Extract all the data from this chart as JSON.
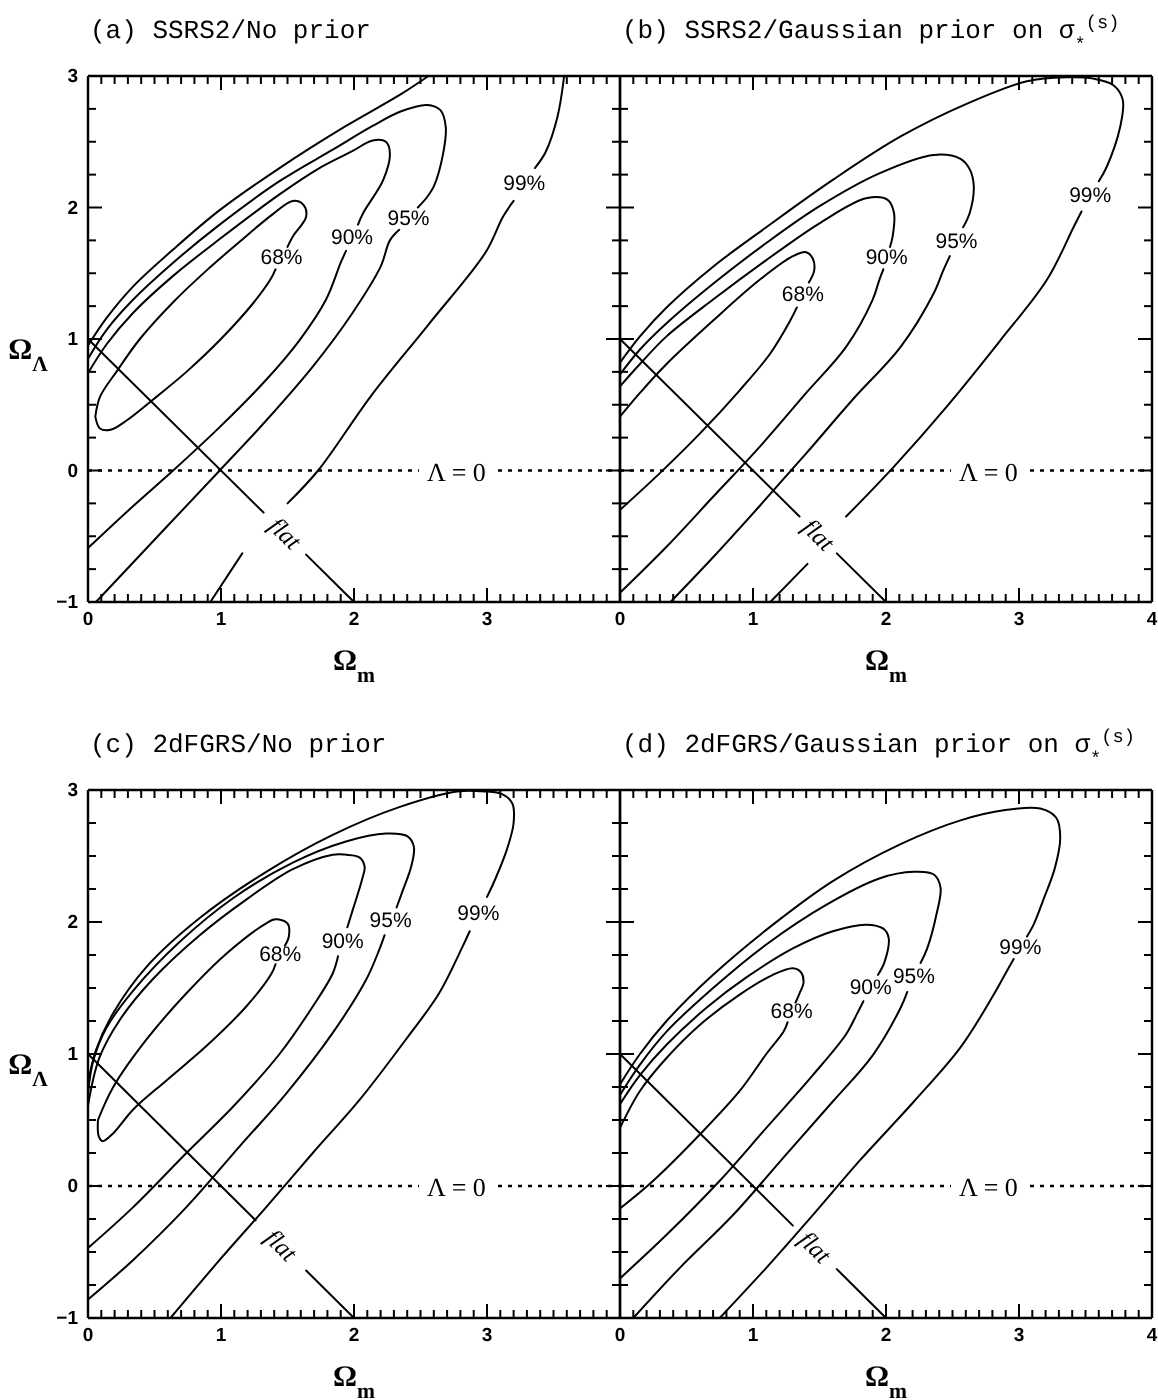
{
  "chart_data": [
    {
      "type": "line",
      "title": "(a) SSRS2/No prior",
      "xlabel": "Ω$_{m}$",
      "ylabel": "Ω$_{Λ}$",
      "xlim": [
        0,
        4
      ],
      "ylim": [
        -1,
        3
      ],
      "xticks": [
        0,
        {
          "value": 0.1,
          "label": null
        },
        {
          "value": 0.2,
          "label": null
        },
        {
          "value": 0.3,
          "label": null
        },
        {
          "value": 0.4,
          "label": null
        },
        {
          "value": 0.5,
          "label": null
        },
        {
          "value": 0.6,
          "label": null
        },
        {
          "value": 0.7,
          "label": null
        },
        {
          "value": 0.8,
          "label": null
        },
        {
          "value": 0.9,
          "label": null
        },
        1,
        {
          "value": 1.1,
          "label": null
        },
        {
          "value": 1.2,
          "label": null
        },
        {
          "value": 1.3,
          "label": null
        },
        {
          "value": 1.4,
          "label": null
        },
        {
          "value": 1.5,
          "label": null
        },
        {
          "value": 1.6,
          "label": null
        },
        {
          "value": 1.7,
          "label": null
        },
        {
          "value": 1.8,
          "label": null
        },
        {
          "value": 1.9,
          "label": null
        },
        2,
        {
          "value": 2.1,
          "label": null
        },
        {
          "value": 2.2,
          "label": null
        },
        {
          "value": 2.3,
          "label": null
        },
        {
          "value": 2.4,
          "label": null
        },
        {
          "value": 2.5,
          "label": null
        },
        {
          "value": 2.6,
          "label": null
        },
        {
          "value": 2.7,
          "label": null
        },
        {
          "value": 2.8,
          "label": null
        },
        {
          "value": 2.9,
          "label": null
        },
        3,
        {
          "value": 3.1,
          "label": null
        },
        {
          "value": 3.2,
          "label": null
        },
        {
          "value": 3.3,
          "label": null
        },
        {
          "value": 3.4,
          "label": null
        },
        {
          "value": 3.5,
          "label": null
        },
        {
          "value": 3.6,
          "label": null
        },
        {
          "value": 3.7,
          "label": null
        },
        {
          "value": 3.8,
          "label": null
        },
        {
          "value": 3.9,
          "label": null
        },
        {
          "value": 4,
          "label": null
        }
      ],
      "yticks": [
        -1,
        {
          "value": -0.75,
          "label": null
        },
        {
          "value": -0.5,
          "label": null
        },
        {
          "value": -0.25,
          "label": null
        },
        0,
        {
          "value": 0.25,
          "label": null
        },
        {
          "value": 0.5,
          "label": null
        },
        {
          "value": 0.75,
          "label": null
        },
        1,
        {
          "value": 1.25,
          "label": null
        },
        {
          "value": 1.5,
          "label": null
        },
        {
          "value": 1.75,
          "label": null
        },
        2,
        {
          "value": 2.25,
          "label": null
        },
        {
          "value": 2.5,
          "label": null
        },
        {
          "value": 2.75,
          "label": null
        },
        3
      ],
      "ref_lines": [
        {
          "axis": "y",
          "value": 0,
          "label": "Λ = 0",
          "line_style": "dotted"
        }
      ],
      "series": [
        {
          "name": "68%",
          "color": "#000000",
          "x": [
            0.055,
            0.09,
            0.22,
            0.39,
            0.64,
            0.89,
            1.14,
            1.39,
            1.54,
            1.62,
            1.64,
            1.54,
            1.5,
            1.46,
            1.41,
            1.37,
            1.24,
            0.99,
            0.74,
            0.49,
            0.29,
            0.17,
            0.09,
            0.055
          ],
          "values": [
            0.41,
            0.56,
            0.76,
            1.0,
            1.28,
            1.52,
            1.74,
            1.95,
            2.05,
            2.02,
            1.93,
            1.78,
            1.7,
            null,
            1.53,
            1.45,
            1.27,
            0.99,
            0.75,
            0.54,
            0.38,
            0.31,
            0.32,
            0.41
          ]
        },
        {
          "name": "90%",
          "color": "#000000",
          "x": [
            0,
            0.34,
            0.64,
            0.99,
            1.34,
            1.59,
            1.79,
            1.9,
            1.94,
            1.99,
            2.03,
            2.07,
            2.22,
            2.27,
            2.24,
            2.14,
            1.99,
            1.74,
            1.44,
            0.99,
            0.64,
            0.34,
            0.14,
            0
          ],
          "values": [
            -0.59,
            -0.27,
            0.0,
            0.33,
            0.69,
            0.99,
            1.3,
            1.58,
            1.67,
            null,
            1.87,
            1.96,
            2.21,
            2.41,
            2.5,
            2.51,
            2.43,
            2.3,
            2.1,
            1.76,
            1.48,
            1.2,
            0.96,
            0.74
          ]
        },
        {
          "name": "95%",
          "color": "#000000",
          "x": [
            0.06,
            0.59,
            0.99,
            1.34,
            1.69,
            1.99,
            2.2,
            2.27,
            2.34,
            2.41,
            2.48,
            2.55,
            2.6,
            2.67,
            2.69,
            2.65,
            2.55,
            2.35,
            2.14,
            1.84,
            1.44,
            0.99,
            0.64,
            0.34,
            0.14,
            0
          ],
          "values": [
            -1,
            -0.43,
            0.0,
            0.38,
            0.79,
            1.2,
            1.55,
            1.75,
            1.83,
            null,
            2.0,
            2.08,
            2.16,
            2.41,
            2.61,
            2.74,
            2.78,
            2.73,
            2.62,
            2.44,
            2.2,
            1.87,
            1.58,
            1.3,
            1.07,
            0.85
          ]
        },
        {
          "name": "99%",
          "color": "#000000",
          "x": [
            3.58,
            3.53,
            3.44,
            3.36,
            3.28,
            3.2,
            3.12,
            2.99,
            2.56,
            2.13,
            1.73,
            1.5,
            1.33,
            1.16,
            0.92,
            1.75,
            2.56,
            2.35,
            1.94,
            1.44,
            0.99,
            0.64,
            0.34,
            0.14,
            0
          ],
          "values": [
            3.0,
            2.69,
            2.42,
            2.3,
            null,
            2.05,
            1.93,
            1.66,
            1.11,
            0.57,
            0.0,
            -0.25,
            null,
            -0.63,
            -1,
            null,
            3.0,
            2.86,
            2.62,
            2.3,
            1.98,
            1.68,
            1.4,
            1.16,
            0.95
          ]
        },
        {
          "name": "flat",
          "color": "#000000",
          "x": [
            0,
            1.32,
            1.48,
            1.64,
            2
          ],
          "values": [
            1,
            -0.32,
            null,
            -0.64,
            -1
          ]
        }
      ]
    },
    {
      "type": "line",
      "title": "(b) SSRS2/Gaussian prior on σ$_{*}$$^{(s)}$",
      "xlabel": "Ω$_{m}$",
      "xlim": [
        0,
        4
      ],
      "ylim": [
        -1,
        3
      ],
      "tick_labels": "x",
      "xticks": [
        0,
        {
          "value": 0.1,
          "label": null
        },
        {
          "value": 0.2,
          "label": null
        },
        {
          "value": 0.3,
          "label": null
        },
        {
          "value": 0.4,
          "label": null
        },
        {
          "value": 0.5,
          "label": null
        },
        {
          "value": 0.6,
          "label": null
        },
        {
          "value": 0.7,
          "label": null
        },
        {
          "value": 0.8,
          "label": null
        },
        {
          "value": 0.9,
          "label": null
        },
        1,
        {
          "value": 1.1,
          "label": null
        },
        {
          "value": 1.2,
          "label": null
        },
        {
          "value": 1.3,
          "label": null
        },
        {
          "value": 1.4,
          "label": null
        },
        {
          "value": 1.5,
          "label": null
        },
        {
          "value": 1.6,
          "label": null
        },
        {
          "value": 1.7,
          "label": null
        },
        {
          "value": 1.8,
          "label": null
        },
        {
          "value": 1.9,
          "label": null
        },
        2,
        {
          "value": 2.1,
          "label": null
        },
        {
          "value": 2.2,
          "label": null
        },
        {
          "value": 2.3,
          "label": null
        },
        {
          "value": 2.4,
          "label": null
        },
        {
          "value": 2.5,
          "label": null
        },
        {
          "value": 2.6,
          "label": null
        },
        {
          "value": 2.7,
          "label": null
        },
        {
          "value": 2.8,
          "label": null
        },
        {
          "value": 2.9,
          "label": null
        },
        3,
        {
          "value": 3.1,
          "label": null
        },
        {
          "value": 3.2,
          "label": null
        },
        {
          "value": 3.3,
          "label": null
        },
        {
          "value": 3.4,
          "label": null
        },
        {
          "value": 3.5,
          "label": null
        },
        {
          "value": 3.6,
          "label": null
        },
        {
          "value": 3.7,
          "label": null
        },
        {
          "value": 3.8,
          "label": null
        },
        {
          "value": 3.9,
          "label": null
        },
        4
      ],
      "yticks": [
        -1,
        {
          "value": -0.75,
          "label": null
        },
        {
          "value": -0.5,
          "label": null
        },
        {
          "value": -0.25,
          "label": null
        },
        0,
        {
          "value": 0.25,
          "label": null
        },
        {
          "value": 0.5,
          "label": null
        },
        {
          "value": 0.75,
          "label": null
        },
        1,
        {
          "value": 1.25,
          "label": null
        },
        {
          "value": 1.5,
          "label": null
        },
        {
          "value": 1.75,
          "label": null
        },
        2,
        {
          "value": 2.25,
          "label": null
        },
        {
          "value": 2.5,
          "label": null
        },
        {
          "value": 2.75,
          "label": null
        },
        3
      ],
      "ref_lines": [
        {
          "axis": "y",
          "value": 0,
          "label": "Λ = 0",
          "line_style": "dotted"
        }
      ],
      "series": [
        {
          "name": "68%",
          "color": "#000000",
          "x": [
            0,
            0.3,
            0.6,
            0.9,
            1.13,
            1.28,
            1.33,
            1.37,
            1.42,
            1.46,
            1.45,
            1.4,
            1.3,
            1.05,
            0.7,
            0.35,
            0.15,
            0
          ],
          "values": [
            -0.3,
            -0.02,
            0.28,
            0.61,
            0.89,
            1.14,
            1.24,
            null,
            1.43,
            1.52,
            1.61,
            1.66,
            1.63,
            1.45,
            1.14,
            0.81,
            0.59,
            0.41
          ]
        },
        {
          "name": "90%",
          "color": "#000000",
          "x": [
            0,
            0.35,
            0.7,
            1.05,
            1.4,
            1.7,
            1.9,
            1.95,
            1.98,
            2.0,
            2.03,
            2.05,
            2.06,
            2.01,
            1.85,
            1.5,
            1.1,
            0.7,
            0.35,
            0.15,
            0
          ],
          "values": [
            -0.93,
            -0.58,
            -0.2,
            0.18,
            0.59,
            0.94,
            1.3,
            1.45,
            1.53,
            null,
            1.7,
            1.78,
            1.96,
            2.06,
            2.07,
            1.88,
            1.6,
            1.3,
            1.02,
            0.81,
            0.64
          ]
        },
        {
          "name": "95%",
          "color": "#000000",
          "x": [
            0.38,
            0.7,
            1.05,
            1.4,
            1.75,
            2.11,
            2.36,
            2.43,
            2.48,
            2.53,
            2.58,
            2.63,
            2.66,
            2.63,
            2.56,
            2.36,
            1.95,
            1.5,
            1.1,
            0.7,
            0.35,
            0.15,
            0
          ],
          "values": [
            -1,
            -0.66,
            -0.27,
            0.13,
            0.54,
            0.94,
            1.35,
            1.52,
            1.63,
            null,
            1.85,
            1.96,
            2.16,
            2.29,
            2.37,
            2.4,
            2.26,
            2.01,
            1.73,
            1.42,
            1.12,
            0.92,
            0.73
          ]
        },
        {
          "name": "99%",
          "color": "#000000",
          "x": [
            0,
            0.15,
            0.35,
            0.7,
            1.1,
            1.6,
            2.11,
            2.61,
            3.06,
            3.36,
            3.56,
            3.71,
            3.78,
            3.76,
            3.66,
            3.6,
            3.53,
            3.47,
            3.41,
            3.21,
            2.86,
            2.46,
            2.06,
            1.7,
            1.55,
            1.41,
            1.13
          ],
          "values": [
            0.82,
            1.02,
            1.24,
            1.55,
            1.85,
            2.21,
            2.54,
            2.79,
            2.96,
            2.99,
            2.98,
            2.93,
            2.82,
            2.61,
            2.31,
            2.2,
            null,
            1.97,
            1.85,
            1.45,
            0.99,
            0.49,
            0.03,
            -0.35,
            null,
            -0.71,
            -1
          ]
        },
        {
          "name": "flat",
          "color": "#000000",
          "x": [
            0,
            1.35,
            1.49,
            1.63,
            2
          ],
          "values": [
            1,
            -0.35,
            null,
            -0.63,
            -1
          ]
        }
      ]
    },
    {
      "type": "line",
      "title": "(c) 2dFGRS/No prior",
      "xlabel": "Ω$_{m}$",
      "ylabel": "Ω$_{Λ}$",
      "xlim": [
        0,
        4
      ],
      "ylim": [
        -1,
        3
      ],
      "xticks": [
        0,
        {
          "value": 0.1,
          "label": null
        },
        {
          "value": 0.2,
          "label": null
        },
        {
          "value": 0.3,
          "label": null
        },
        {
          "value": 0.4,
          "label": null
        },
        {
          "value": 0.5,
          "label": null
        },
        {
          "value": 0.6,
          "label": null
        },
        {
          "value": 0.7,
          "label": null
        },
        {
          "value": 0.8,
          "label": null
        },
        {
          "value": 0.9,
          "label": null
        },
        1,
        {
          "value": 1.1,
          "label": null
        },
        {
          "value": 1.2,
          "label": null
        },
        {
          "value": 1.3,
          "label": null
        },
        {
          "value": 1.4,
          "label": null
        },
        {
          "value": 1.5,
          "label": null
        },
        {
          "value": 1.6,
          "label": null
        },
        {
          "value": 1.7,
          "label": null
        },
        {
          "value": 1.8,
          "label": null
        },
        {
          "value": 1.9,
          "label": null
        },
        2,
        {
          "value": 2.1,
          "label": null
        },
        {
          "value": 2.2,
          "label": null
        },
        {
          "value": 2.3,
          "label": null
        },
        {
          "value": 2.4,
          "label": null
        },
        {
          "value": 2.5,
          "label": null
        },
        {
          "value": 2.6,
          "label": null
        },
        {
          "value": 2.7,
          "label": null
        },
        {
          "value": 2.8,
          "label": null
        },
        {
          "value": 2.9,
          "label": null
        },
        3,
        {
          "value": 3.1,
          "label": null
        },
        {
          "value": 3.2,
          "label": null
        },
        {
          "value": 3.3,
          "label": null
        },
        {
          "value": 3.4,
          "label": null
        },
        {
          "value": 3.5,
          "label": null
        },
        {
          "value": 3.6,
          "label": null
        },
        {
          "value": 3.7,
          "label": null
        },
        {
          "value": 3.8,
          "label": null
        },
        {
          "value": 3.9,
          "label": null
        },
        {
          "value": 4,
          "label": null
        }
      ],
      "yticks": [
        -1,
        {
          "value": -0.75,
          "label": null
        },
        {
          "value": -0.5,
          "label": null
        },
        {
          "value": -0.25,
          "label": null
        },
        0,
        {
          "value": 0.25,
          "label": null
        },
        {
          "value": 0.5,
          "label": null
        },
        {
          "value": 0.75,
          "label": null
        },
        1,
        {
          "value": 1.25,
          "label": null
        },
        {
          "value": 1.5,
          "label": null
        },
        {
          "value": 1.75,
          "label": null
        },
        2,
        {
          "value": 2.25,
          "label": null
        },
        {
          "value": 2.5,
          "label": null
        },
        {
          "value": 2.75,
          "label": null
        },
        3
      ],
      "ref_lines": [
        {
          "axis": "y",
          "value": 0,
          "label": "Λ = 0",
          "line_style": "dotted"
        }
      ],
      "series": [
        {
          "name": "68%",
          "color": "#000000",
          "x": [
            0.075,
            0.19,
            0.44,
            0.74,
            1.04,
            1.34,
            1.41,
            1.5,
            1.51,
            1.48,
            1.45,
            1.41,
            1.38,
            1.19,
            0.89,
            0.59,
            0.34,
            0.19,
            0.11,
            0.08,
            0.075
          ],
          "values": [
            0.5,
            0.75,
            1.11,
            1.46,
            1.76,
            1.99,
            2.02,
            1.99,
            1.89,
            1.82,
            null,
            1.68,
            1.61,
            1.36,
            1.06,
            0.8,
            0.58,
            0.4,
            0.34,
            0.38,
            0.5
          ]
        },
        {
          "name": "90%",
          "color": "#000000",
          "x": [
            0,
            0.34,
            0.74,
            1.09,
            1.44,
            1.69,
            1.84,
            1.88,
            1.92,
            1.95,
            1.99,
            2.06,
            2.08,
            2.04,
            1.94,
            1.84,
            1.54,
            1.19,
            0.84,
            0.49,
            0.24,
            0.085,
            0
          ],
          "values": [
            -0.47,
            -0.16,
            0.25,
            0.6,
            1.0,
            1.36,
            1.61,
            1.74,
            null,
            1.96,
            2.09,
            2.32,
            2.42,
            2.49,
            2.51,
            2.51,
            2.4,
            2.17,
            1.9,
            1.57,
            1.26,
            0.97,
            0.61
          ]
        },
        {
          "name": "95%",
          "color": "#000000",
          "x": [
            0,
            0.34,
            0.74,
            1.14,
            1.49,
            1.84,
            2.09,
            2.19,
            2.23,
            2.28,
            2.32,
            2.36,
            2.43,
            2.45,
            2.4,
            2.24,
            1.94,
            1.54,
            1.09,
            0.69,
            0.34,
            0.14,
            0.04,
            0
          ],
          "values": [
            -0.86,
            -0.56,
            -0.16,
            0.3,
            0.7,
            1.16,
            1.56,
            1.79,
            1.9,
            null,
            2.11,
            2.22,
            2.42,
            2.57,
            2.65,
            2.67,
            2.61,
            2.45,
            2.18,
            1.85,
            1.48,
            1.2,
            0.95,
            0.7
          ]
        },
        {
          "name": "99%",
          "color": "#000000",
          "x": [
            0.62,
            0.99,
            1.34,
            1.69,
            2.04,
            2.39,
            2.64,
            2.81,
            2.87,
            2.94,
            3.0,
            3.06,
            3.15,
            3.2,
            3.19,
            3.11,
            2.95,
            2.79,
            2.34,
            1.84,
            1.34,
            0.84,
            0.44,
            0.19,
            0.06,
            0
          ],
          "values": [
            -1,
            -0.56,
            -0.16,
            0.25,
            0.65,
            1.11,
            1.46,
            1.8,
            1.93,
            null,
            2.19,
            2.32,
            2.55,
            2.75,
            2.9,
            2.97,
            2.99,
            2.99,
            2.87,
            2.66,
            2.38,
            2.03,
            1.66,
            1.31,
            1.03,
            0.78
          ]
        },
        {
          "name": "flat",
          "color": "#000000",
          "x": [
            0,
            1.26,
            1.45,
            1.64,
            2
          ],
          "values": [
            1,
            -0.26,
            null,
            -0.64,
            -1
          ]
        }
      ]
    },
    {
      "type": "line",
      "title": "(d) 2dFGRS/Gaussian prior on σ$_{*}$$^{(s)}$",
      "xlabel": "Ω$_{m}$",
      "xlim": [
        0,
        4
      ],
      "ylim": [
        -1,
        3
      ],
      "tick_labels": "x",
      "xticks": [
        0,
        {
          "value": 0.1,
          "label": null
        },
        {
          "value": 0.2,
          "label": null
        },
        {
          "value": 0.3,
          "label": null
        },
        {
          "value": 0.4,
          "label": null
        },
        {
          "value": 0.5,
          "label": null
        },
        {
          "value": 0.6,
          "label": null
        },
        {
          "value": 0.7,
          "label": null
        },
        {
          "value": 0.8,
          "label": null
        },
        {
          "value": 0.9,
          "label": null
        },
        1,
        {
          "value": 1.1,
          "label": null
        },
        {
          "value": 1.2,
          "label": null
        },
        {
          "value": 1.3,
          "label": null
        },
        {
          "value": 1.4,
          "label": null
        },
        {
          "value": 1.5,
          "label": null
        },
        {
          "value": 1.6,
          "label": null
        },
        {
          "value": 1.7,
          "label": null
        },
        {
          "value": 1.8,
          "label": null
        },
        {
          "value": 1.9,
          "label": null
        },
        2,
        {
          "value": 2.1,
          "label": null
        },
        {
          "value": 2.2,
          "label": null
        },
        {
          "value": 2.3,
          "label": null
        },
        {
          "value": 2.4,
          "label": null
        },
        {
          "value": 2.5,
          "label": null
        },
        {
          "value": 2.6,
          "label": null
        },
        {
          "value": 2.7,
          "label": null
        },
        {
          "value": 2.8,
          "label": null
        },
        {
          "value": 2.9,
          "label": null
        },
        3,
        {
          "value": 3.1,
          "label": null
        },
        {
          "value": 3.2,
          "label": null
        },
        {
          "value": 3.3,
          "label": null
        },
        {
          "value": 3.4,
          "label": null
        },
        {
          "value": 3.5,
          "label": null
        },
        {
          "value": 3.6,
          "label": null
        },
        {
          "value": 3.7,
          "label": null
        },
        {
          "value": 3.8,
          "label": null
        },
        {
          "value": 3.9,
          "label": null
        },
        4
      ],
      "yticks": [
        -1,
        {
          "value": -0.75,
          "label": null
        },
        {
          "value": -0.5,
          "label": null
        },
        {
          "value": -0.25,
          "label": null
        },
        0,
        {
          "value": 0.25,
          "label": null
        },
        {
          "value": 0.5,
          "label": null
        },
        {
          "value": 0.75,
          "label": null
        },
        1,
        {
          "value": 1.25,
          "label": null
        },
        {
          "value": 1.5,
          "label": null
        },
        {
          "value": 1.75,
          "label": null
        },
        2,
        {
          "value": 2.25,
          "label": null
        },
        {
          "value": 2.5,
          "label": null
        },
        {
          "value": 2.75,
          "label": null
        },
        3
      ],
      "ref_lines": [
        {
          "axis": "y",
          "value": 0,
          "label": "Λ = 0",
          "line_style": "dotted"
        }
      ],
      "series": [
        {
          "name": "68%",
          "color": "#000000",
          "x": [
            0,
            0.25,
            0.6,
            0.9,
            1.1,
            1.23,
            1.26,
            1.29,
            1.32,
            1.35,
            1.38,
            1.36,
            1.3,
            1.15,
            0.9,
            0.6,
            0.35,
            0.15,
            0
          ],
          "values": [
            -0.17,
            0.04,
            0.39,
            0.72,
            1.0,
            1.17,
            1.24,
            null,
            1.39,
            1.46,
            1.54,
            1.62,
            1.65,
            1.6,
            1.45,
            1.22,
            0.97,
            0.72,
            0.44
          ]
        },
        {
          "name": "90%",
          "color": "#000000",
          "x": [
            0,
            0.35,
            0.75,
            1.1,
            1.45,
            1.7,
            1.78,
            1.83,
            1.89,
            1.94,
            1.99,
            2.02,
            1.98,
            1.85,
            1.6,
            1.3,
            0.95,
            0.65,
            0.35,
            0.15,
            0
          ],
          "values": [
            -0.7,
            -0.37,
            0.04,
            0.44,
            0.84,
            1.15,
            1.3,
            1.4,
            null,
            1.6,
            1.7,
            1.88,
            1.95,
            1.98,
            1.93,
            1.8,
            1.58,
            1.35,
            1.07,
            0.84,
            0.62
          ]
        },
        {
          "name": "95%",
          "color": "#000000",
          "x": [
            0.1,
            0.45,
            0.85,
            1.25,
            1.6,
            1.9,
            2.11,
            2.16,
            2.21,
            2.26,
            2.31,
            2.38,
            2.41,
            2.36,
            2.21,
            1.95,
            1.55,
            1.1,
            0.7,
            0.35,
            0.15,
            0
          ],
          "values": [
            -1,
            -0.62,
            -0.22,
            0.24,
            0.64,
            0.99,
            1.35,
            1.47,
            null,
            1.69,
            1.8,
            2.06,
            2.26,
            2.36,
            2.38,
            2.33,
            2.13,
            1.83,
            1.5,
            1.17,
            0.92,
            0.69
          ]
        },
        {
          "name": "99%",
          "color": "#000000",
          "x": [
            0.75,
            1.1,
            1.45,
            1.8,
            2.21,
            2.56,
            2.81,
            2.91,
            2.96,
            3.01,
            3.06,
            3.11,
            3.18,
            3.27,
            3.31,
            3.28,
            3.16,
            2.91,
            2.56,
            2.11,
            1.6,
            1.15,
            0.7,
            0.35,
            0.15,
            0
          ],
          "values": [
            -1,
            -0.62,
            -0.22,
            0.19,
            0.64,
            1.05,
            1.45,
            1.63,
            1.72,
            null,
            1.89,
            1.98,
            2.16,
            2.41,
            2.64,
            2.79,
            2.86,
            2.85,
            2.77,
            2.59,
            2.31,
            1.98,
            1.6,
            1.25,
            1.0,
            0.77
          ]
        },
        {
          "name": "flat",
          "color": "#000000",
          "x": [
            0,
            1.3,
            1.47,
            1.63,
            2
          ],
          "values": [
            1,
            -0.3,
            null,
            -0.63,
            -1
          ]
        }
      ]
    }
  ]
}
